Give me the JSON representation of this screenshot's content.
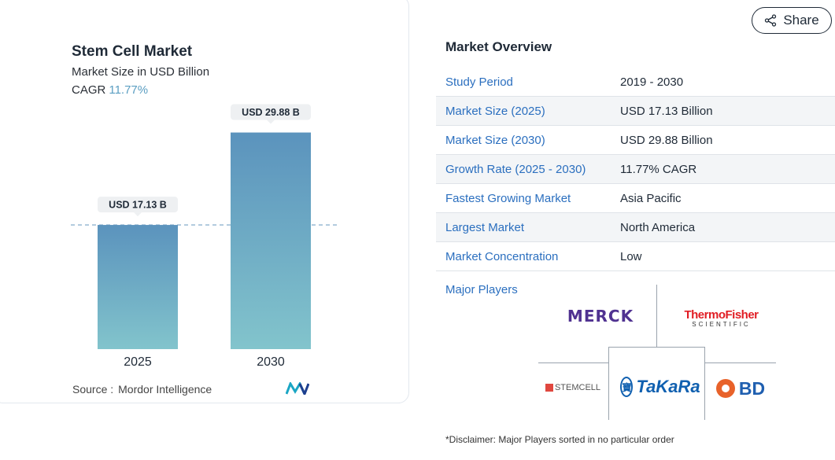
{
  "chart_data": {
    "type": "bar",
    "title": "Stem Cell Market",
    "subtitle": "Market Size in USD Billion",
    "cagr_label": "CAGR",
    "cagr_value": "11.77%",
    "categories": [
      "2025",
      "2030"
    ],
    "values": [
      17.13,
      29.88
    ],
    "data_labels": [
      "USD 17.13 B",
      "USD 29.88 B"
    ],
    "xlabel": "",
    "ylabel": "",
    "ylim": [
      0,
      33.3
    ],
    "grid": false,
    "reference_line_value": 17.13,
    "colors": {
      "bar_top": "#5b93bd",
      "bar_bottom": "#82c4cc",
      "reference_line": "#8fb3cf",
      "label_bg": "#eef0f2"
    }
  },
  "source": {
    "label": "Source :",
    "name": "Mordor Intelligence"
  },
  "share": {
    "label": "Share",
    "icon": "share-icon"
  },
  "overview": {
    "title": "Market Overview",
    "rows": [
      {
        "label": "Study Period",
        "value": "2019 - 2030"
      },
      {
        "label": "Market Size (2025)",
        "value": "USD 17.13 Billion"
      },
      {
        "label": "Market Size (2030)",
        "value": "USD 29.88 Billion"
      },
      {
        "label": "Growth Rate (2025 - 2030)",
        "value": "11.77% CAGR"
      },
      {
        "label": "Fastest Growing Market",
        "value": "Asia Pacific"
      },
      {
        "label": "Largest Market",
        "value": "North America"
      },
      {
        "label": "Market Concentration",
        "value": "Low"
      }
    ]
  },
  "players": {
    "title": "Major Players",
    "logos": [
      "MERCK",
      "ThermoFisher SCIENTIFIC",
      "STEMCELL",
      "TaKaRa",
      "BD"
    ]
  },
  "disclaimer": "*Disclaimer: Major Players sorted in no particular order"
}
